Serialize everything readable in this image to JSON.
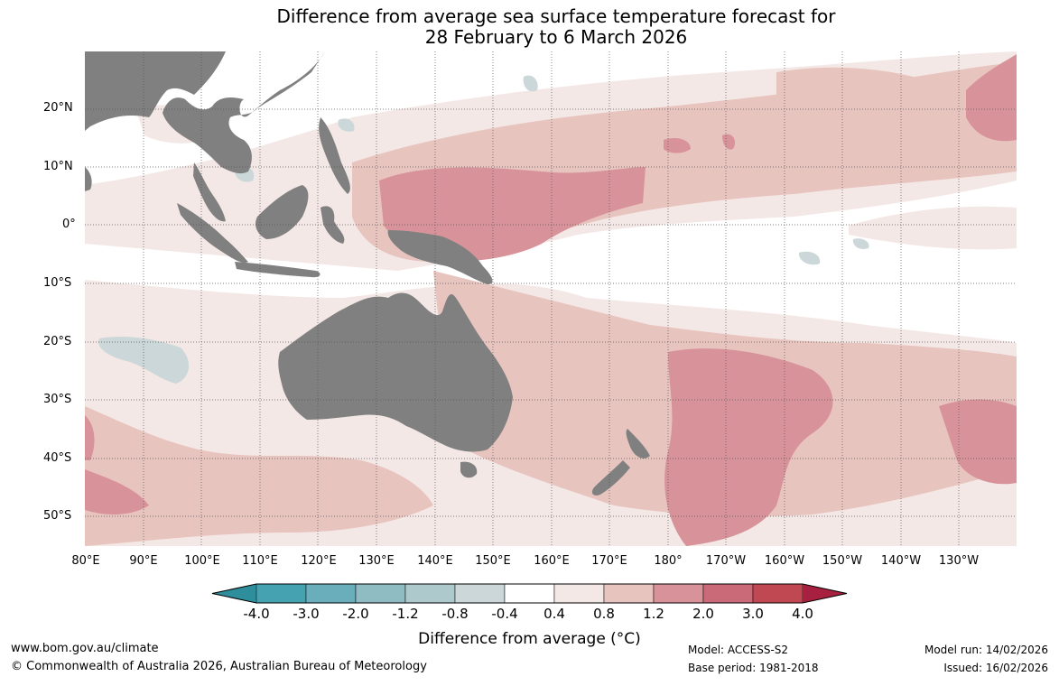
{
  "title": {
    "line1": "Difference from average sea surface temperature forecast for",
    "line2": "28 February to 6 March 2026"
  },
  "map": {
    "lat_labels": [
      "20°N",
      "10°N",
      "0°",
      "10°S",
      "20°S",
      "30°S",
      "40°S",
      "50°S"
    ],
    "lon_labels": [
      "80°E",
      "90°E",
      "100°E",
      "110°E",
      "120°E",
      "130°E",
      "140°E",
      "150°E",
      "160°E",
      "170°E",
      "180°",
      "170°W",
      "160°W",
      "150°W",
      "140°W",
      "130°W"
    ],
    "land_color": "#808080",
    "ocean_color": "#ffffff"
  },
  "colorbar": {
    "title": "Difference from average (°C)",
    "ticks": [
      "-4.0",
      "-3.0",
      "-2.0",
      "-1.2",
      "-0.8",
      "-0.4",
      "0.4",
      "0.8",
      "1.2",
      "2.0",
      "3.0",
      "4.0"
    ],
    "colors": [
      "#2f8e9b",
      "#45a2b0",
      "#6aaebb",
      "#8fbcc3",
      "#adc9cc",
      "#cbd7d8",
      "#ffffff",
      "#f4e8e6",
      "#e8c4bf",
      "#d8939a",
      "#ca6a78",
      "#c04852",
      "#a82040"
    ]
  },
  "footer": {
    "url": "www.bom.gov.au/climate",
    "copyright": "© Commonwealth of Australia 2026, Australian Bureau of Meteorology",
    "model": "Model: ACCESS-S2",
    "base_period": "Base period: 1981-2018",
    "model_run": "Model run: 14/02/2026",
    "issued": "Issued: 16/02/2026"
  }
}
